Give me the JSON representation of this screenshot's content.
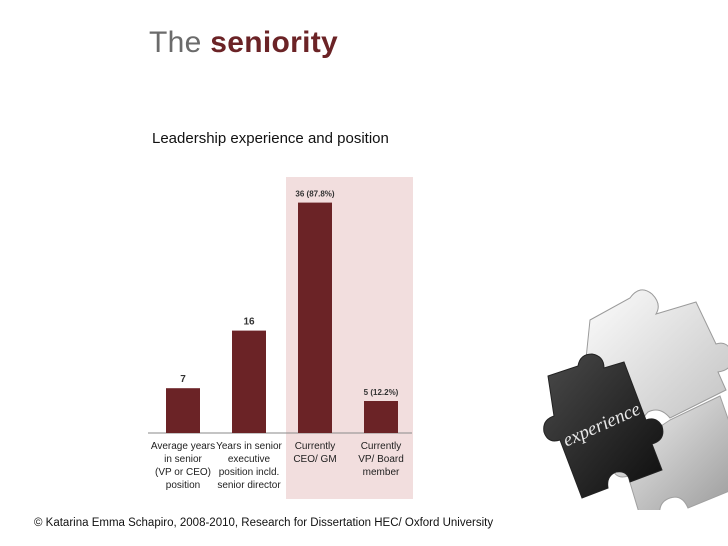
{
  "slide": {
    "title_main": "The",
    "title_accent": "seniority",
    "footer": "© Katarina Emma Schapiro, 2008-2010, Research for Dissertation  HEC/ Oxford University"
  },
  "puzzle": {
    "word": "experience",
    "icon": "puzzle-pieces-icon"
  },
  "colors": {
    "bar": "#6b2326",
    "highlight": "#f2dede",
    "accent": "#6b2326"
  },
  "chart_data": {
    "type": "bar",
    "title": "Leadership experience and position",
    "categories": [
      [
        "Average years",
        "in senior",
        "(VP or CEO)",
        "position"
      ],
      [
        "Years in senior",
        "executive",
        "position incld.",
        "senior director"
      ],
      [
        "Currently",
        "CEO/ GM"
      ],
      [
        "Currently",
        "VP/ Board",
        "member"
      ]
    ],
    "values": [
      7,
      16,
      36,
      5
    ],
    "data_labels": [
      "7",
      "16",
      "36 (87.8%)",
      "5 (12.2%)"
    ],
    "highlighted_categories": [
      2,
      3
    ],
    "ylim": [
      0,
      40
    ],
    "grid": false,
    "legend": "none",
    "xlabel": "",
    "ylabel": ""
  }
}
